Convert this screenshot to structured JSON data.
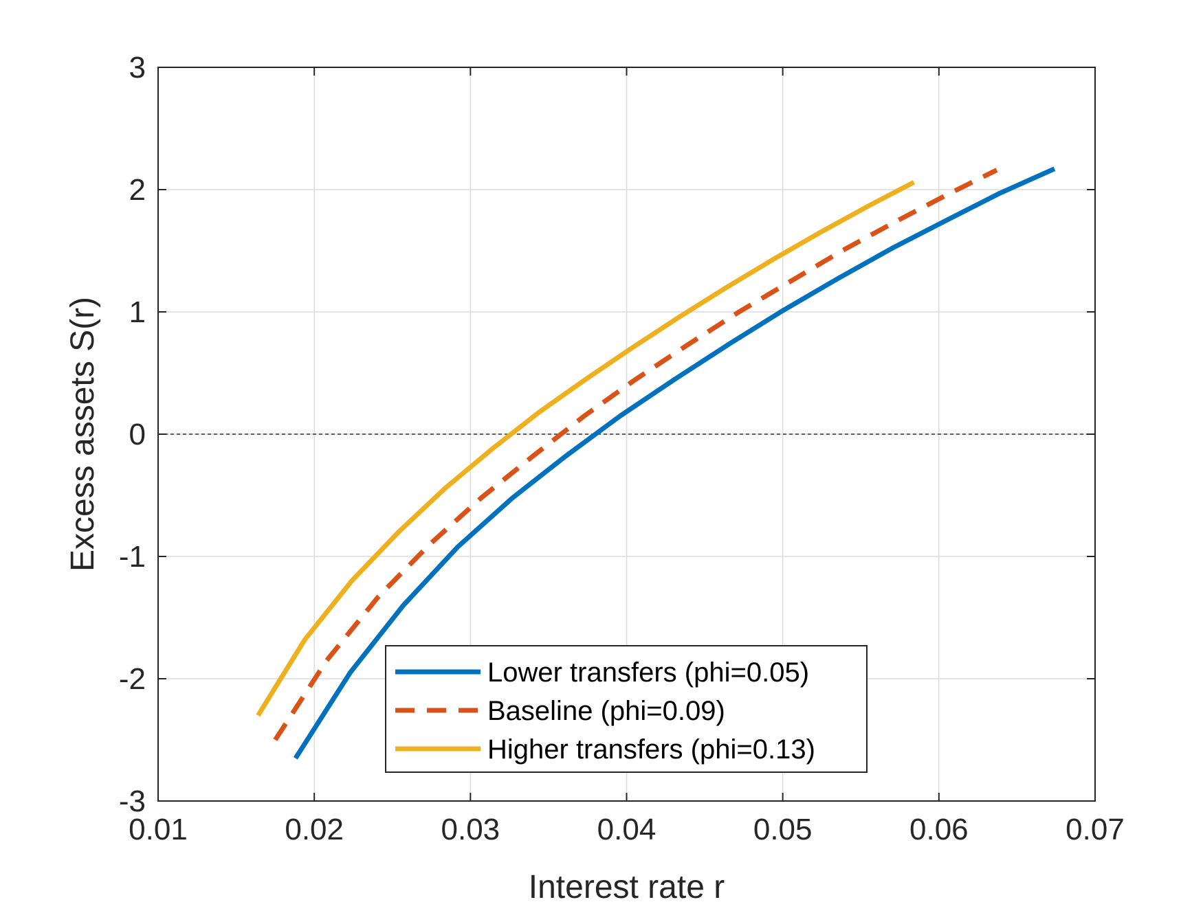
{
  "chart_data": {
    "type": "line",
    "xlabel": "Interest rate r",
    "ylabel": "Excess assets S(r)",
    "xlim": [
      0.01,
      0.07
    ],
    "ylim": [
      -3,
      3
    ],
    "x_ticks": [
      0.01,
      0.02,
      0.03,
      0.04,
      0.05,
      0.06,
      0.07
    ],
    "y_ticks": [
      -3,
      -2,
      -1,
      0,
      1,
      2,
      3
    ],
    "x_tick_labels": [
      "0.01",
      "0.02",
      "0.03",
      "0.04",
      "0.05",
      "0.06",
      "0.07"
    ],
    "y_tick_labels": [
      "-3",
      "-2",
      "-1",
      "0",
      "1",
      "2",
      "3"
    ],
    "grid": true,
    "reference_line": {
      "y": 0,
      "style": "dotted",
      "color": "#333333"
    },
    "legend_position": "bottom-center",
    "series": [
      {
        "name": "Lower transfers (phi=0.05)",
        "color": "#0072BD",
        "style": "solid",
        "x": [
          0.0188,
          0.0223,
          0.0257,
          0.0292,
          0.0327,
          0.0361,
          0.0396,
          0.0431,
          0.0466,
          0.05,
          0.0535,
          0.057,
          0.0605,
          0.0639,
          0.0674
        ],
        "y": [
          -2.65,
          -1.95,
          -1.4,
          -0.92,
          -0.52,
          -0.18,
          0.15,
          0.45,
          0.74,
          1.01,
          1.27,
          1.52,
          1.75,
          1.97,
          2.17
        ]
      },
      {
        "name": "Baseline (phi=0.09)",
        "color": "#D95319",
        "style": "dashed",
        "x": [
          0.0175,
          0.0208,
          0.0241,
          0.0274,
          0.0307,
          0.034,
          0.0373,
          0.0406,
          0.0439,
          0.0472,
          0.0505,
          0.0538,
          0.0571,
          0.0604,
          0.0637
        ],
        "y": [
          -2.5,
          -1.85,
          -1.33,
          -0.9,
          -0.52,
          -0.18,
          0.15,
          0.45,
          0.73,
          1.0,
          1.25,
          1.5,
          1.73,
          1.95,
          2.16
        ]
      },
      {
        "name": "Higher transfers (phi=0.13)",
        "color": "#EDB120",
        "style": "solid",
        "x": [
          0.0164,
          0.0194,
          0.0224,
          0.0254,
          0.0284,
          0.0314,
          0.0344,
          0.0374,
          0.0404,
          0.0434,
          0.0464,
          0.0494,
          0.0524,
          0.0554,
          0.0584
        ],
        "y": [
          -2.3,
          -1.68,
          -1.2,
          -0.8,
          -0.44,
          -0.12,
          0.18,
          0.45,
          0.71,
          0.96,
          1.2,
          1.43,
          1.65,
          1.86,
          2.06
        ]
      }
    ]
  }
}
